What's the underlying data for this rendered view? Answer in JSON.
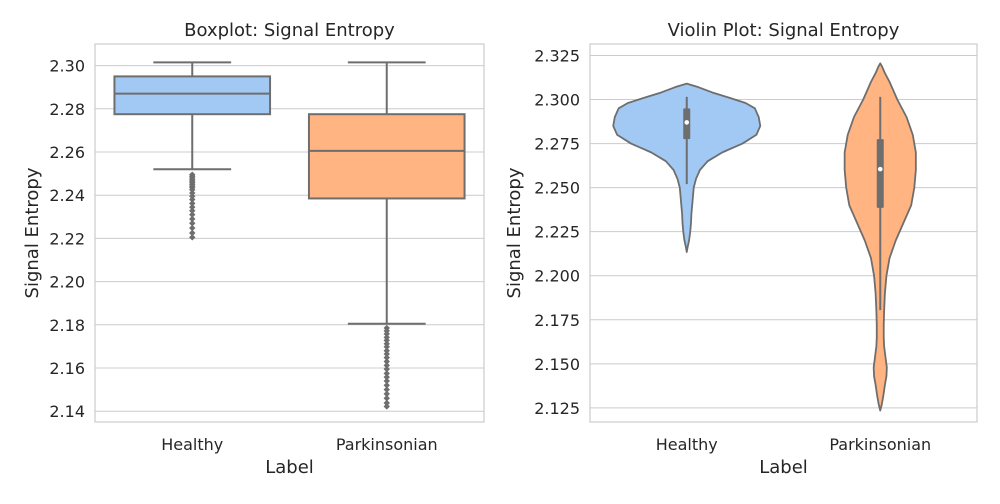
{
  "colors": {
    "background": "#ffffff",
    "grid": "#cccccc",
    "spine": "#cccccc",
    "healthy": "#a1c9f4",
    "parkinsonian": "#ffb482",
    "edge": "#6e6e6e",
    "text": "#262626"
  },
  "chart_data": [
    {
      "type": "boxplot",
      "title": "Boxplot: Signal Entropy",
      "xlabel": "Label",
      "ylabel": "Signal Entropy",
      "categories": [
        "Healthy",
        "Parkinsonian"
      ],
      "ylim": [
        2.135,
        2.31
      ],
      "yticks": [
        2.14,
        2.16,
        2.18,
        2.2,
        2.22,
        2.24,
        2.26,
        2.28,
        2.3
      ],
      "ytick_labels": [
        "2.14",
        "2.16",
        "2.18",
        "2.20",
        "2.22",
        "2.24",
        "2.26",
        "2.28",
        "2.30"
      ],
      "grid": "horizontal",
      "boxes": [
        {
          "category": "Healthy",
          "whisker_low": 2.252,
          "q1": 2.2775,
          "median": 2.287,
          "q3": 2.295,
          "whisker_high": 2.3015,
          "outliers": [
            2.2495,
            2.2488,
            2.248,
            2.2472,
            2.2465,
            2.2458,
            2.245,
            2.2442,
            2.2435,
            2.2425,
            2.241,
            2.2395,
            2.238,
            2.2362,
            2.2345,
            2.2328,
            2.231,
            2.229,
            2.227,
            2.2248,
            2.2225,
            2.2205
          ]
        },
        {
          "category": "Parkinsonian",
          "whisker_low": 2.1805,
          "q1": 2.2385,
          "median": 2.2605,
          "q3": 2.2775,
          "whisker_high": 2.3015,
          "outliers": [
            2.1785,
            2.1772,
            2.1758,
            2.1742,
            2.1728,
            2.1712,
            2.1698,
            2.168,
            2.1665,
            2.1648,
            2.163,
            2.1612,
            2.1595,
            2.1575,
            2.1558,
            2.154,
            2.152,
            2.15,
            2.148,
            2.146,
            2.1438,
            2.1422
          ]
        }
      ]
    },
    {
      "type": "violin",
      "title": "Violin Plot: Signal Entropy",
      "xlabel": "Label",
      "ylabel": "Signal Entropy",
      "categories": [
        "Healthy",
        "Parkinsonian"
      ],
      "ylim": [
        2.117,
        2.3315
      ],
      "yticks": [
        2.125,
        2.15,
        2.175,
        2.2,
        2.225,
        2.25,
        2.275,
        2.3,
        2.325
      ],
      "ytick_labels": [
        "2.125",
        "2.150",
        "2.175",
        "2.200",
        "2.225",
        "2.250",
        "2.275",
        "2.300",
        "2.325"
      ],
      "grid": "horizontal",
      "violins": [
        {
          "category": "Healthy",
          "q1": 2.2775,
          "median": 2.287,
          "q3": 2.295,
          "whisker_low": 2.252,
          "whisker_high": 2.3015,
          "density": [
            [
              2.2135,
              0
            ],
            [
              2.216,
              0.01
            ],
            [
              2.22,
              0.03
            ],
            [
              2.225,
              0.045
            ],
            [
              2.23,
              0.055
            ],
            [
              2.235,
              0.06
            ],
            [
              2.24,
              0.07
            ],
            [
              2.245,
              0.08
            ],
            [
              2.25,
              0.09
            ],
            [
              2.255,
              0.12
            ],
            [
              2.26,
              0.17
            ],
            [
              2.265,
              0.27
            ],
            [
              2.27,
              0.46
            ],
            [
              2.275,
              0.72
            ],
            [
              2.28,
              0.9
            ],
            [
              2.285,
              0.95
            ],
            [
              2.29,
              0.93
            ],
            [
              2.295,
              0.88
            ],
            [
              2.298,
              0.76
            ],
            [
              2.301,
              0.55
            ],
            [
              2.304,
              0.33
            ],
            [
              2.307,
              0.15
            ],
            [
              2.309,
              0
            ]
          ]
        },
        {
          "category": "Parkinsonian",
          "q1": 2.2385,
          "median": 2.2605,
          "q3": 2.2775,
          "whisker_low": 2.1805,
          "whisker_high": 2.3015,
          "density": [
            [
              2.1235,
              0
            ],
            [
              2.127,
              0.02
            ],
            [
              2.132,
              0.04
            ],
            [
              2.138,
              0.06
            ],
            [
              2.143,
              0.08
            ],
            [
              2.148,
              0.085
            ],
            [
              2.153,
              0.07
            ],
            [
              2.16,
              0.05
            ],
            [
              2.165,
              0.045
            ],
            [
              2.172,
              0.045
            ],
            [
              2.18,
              0.05
            ],
            [
              2.19,
              0.06
            ],
            [
              2.2,
              0.08
            ],
            [
              2.21,
              0.12
            ],
            [
              2.22,
              0.2
            ],
            [
              2.23,
              0.3
            ],
            [
              2.24,
              0.4
            ],
            [
              2.25,
              0.44
            ],
            [
              2.26,
              0.46
            ],
            [
              2.27,
              0.46
            ],
            [
              2.28,
              0.42
            ],
            [
              2.29,
              0.34
            ],
            [
              2.3,
              0.22
            ],
            [
              2.31,
              0.12
            ],
            [
              2.315,
              0.06
            ],
            [
              2.319,
              0.02
            ],
            [
              2.3205,
              0
            ]
          ]
        }
      ]
    }
  ]
}
